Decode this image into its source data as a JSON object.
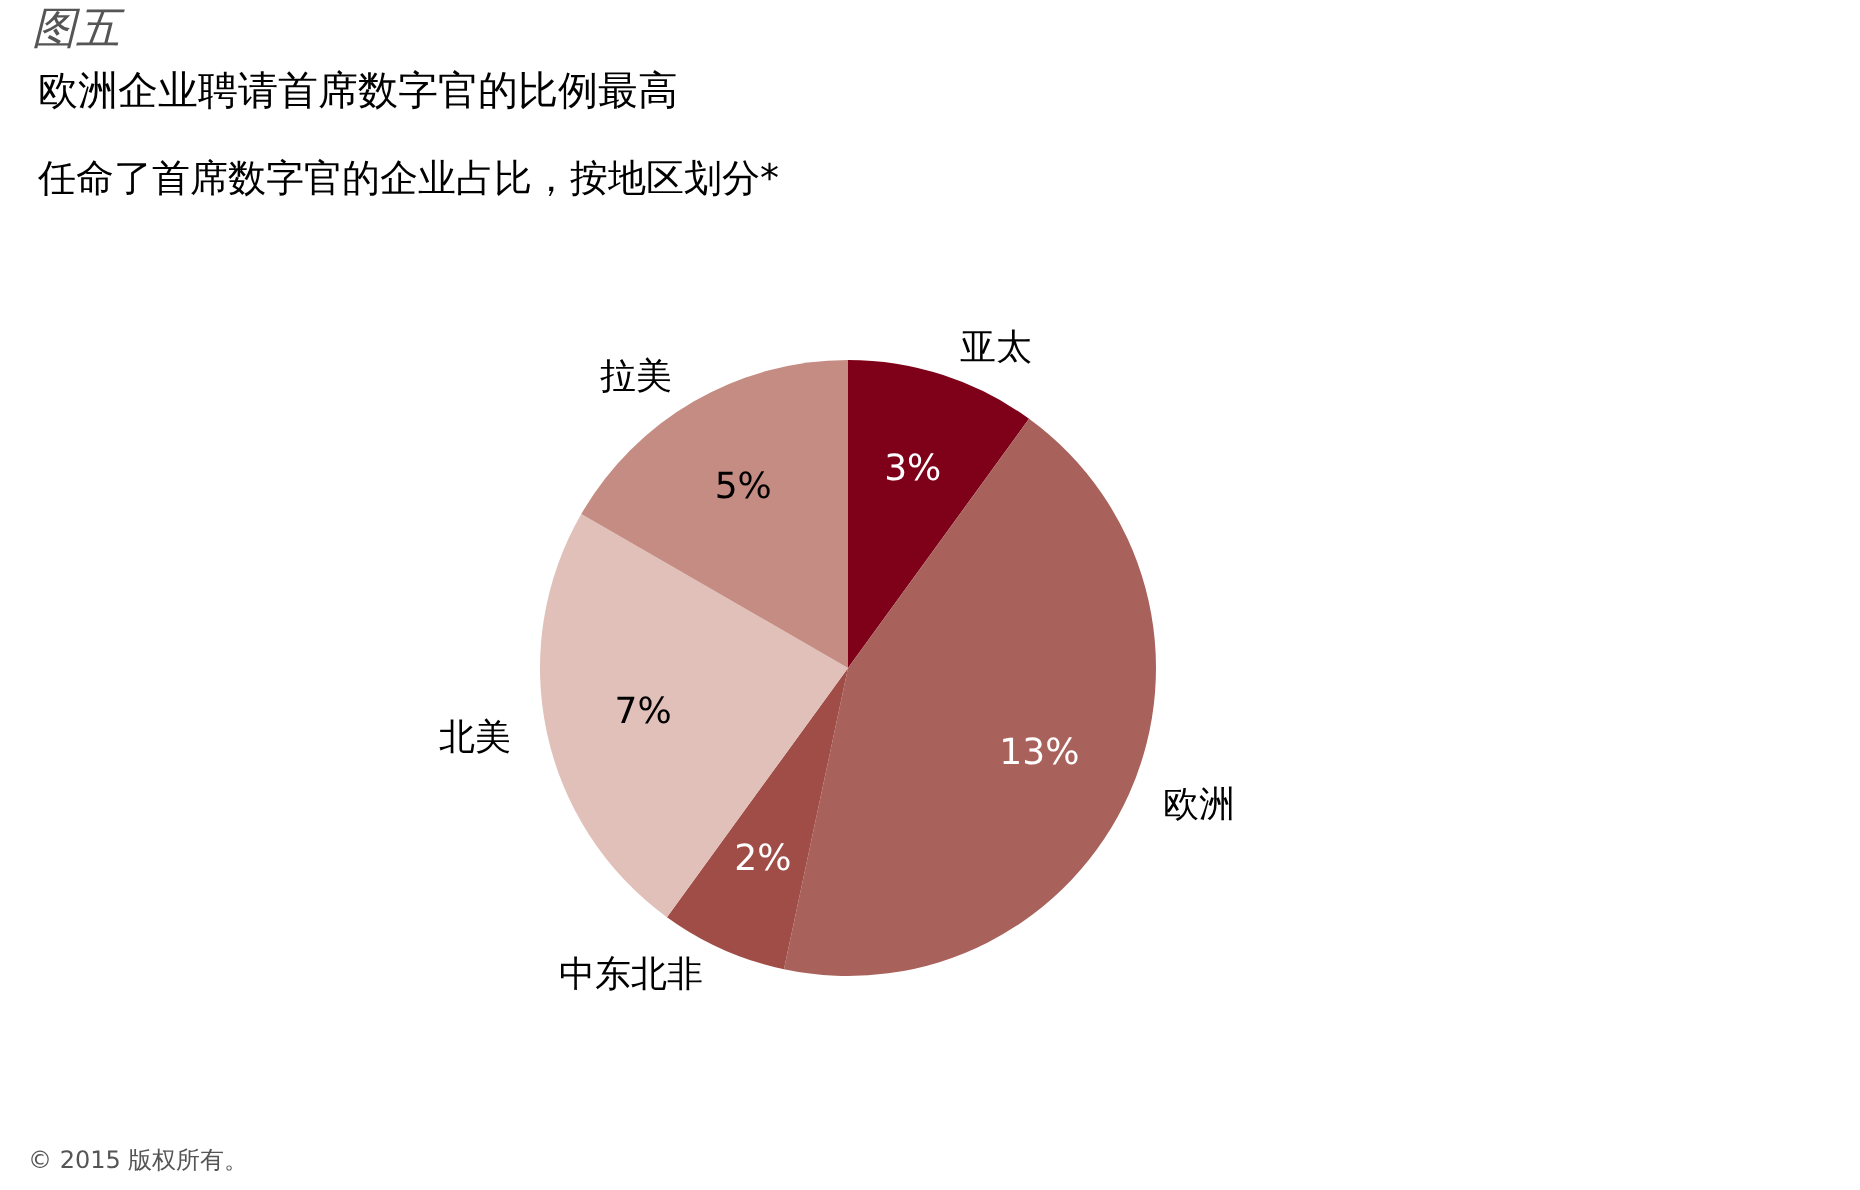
{
  "chart_data": {
    "type": "pie",
    "title": "欧洲企业聘请首席数字官的比例最高",
    "subtitle": "任命了首席数字官的企业占比，按地区划分*",
    "annotations": [
      "图五",
      "© 2015 版权所有。"
    ],
    "categories": [
      "亚太",
      "欧洲",
      "中东北非",
      "北美",
      "拉美"
    ],
    "values": [
      3,
      13,
      2,
      7,
      5
    ],
    "value_labels": [
      "3%",
      "13%",
      "2%",
      "7%",
      "5%"
    ],
    "colors": [
      "#7f0019",
      "#a8625b",
      "#a04c47",
      "#e0c0b8",
      "#c48c82"
    ],
    "legend": false
  }
}
